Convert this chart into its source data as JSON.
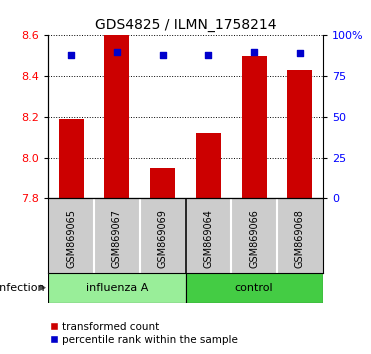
{
  "title": "GDS4825 / ILMN_1758214",
  "samples": [
    "GSM869065",
    "GSM869067",
    "GSM869069",
    "GSM869064",
    "GSM869066",
    "GSM869068"
  ],
  "bar_values": [
    8.19,
    8.6,
    7.95,
    8.12,
    8.5,
    8.43
  ],
  "percentile_values": [
    88,
    90,
    88,
    88,
    90,
    89
  ],
  "bar_baseline": 7.8,
  "ylim_left": [
    7.8,
    8.6
  ],
  "ylim_right": [
    0,
    100
  ],
  "yticks_left": [
    7.8,
    8.0,
    8.2,
    8.4,
    8.6
  ],
  "yticks_right": [
    0,
    25,
    50,
    75,
    100
  ],
  "ytick_labels_right": [
    "0",
    "25",
    "50",
    "75",
    "100%"
  ],
  "bar_color": "#CC0000",
  "square_color": "#0000CC",
  "background_color": "#ffffff",
  "sample_box_color": "#cccccc",
  "influenza_color": "#99ee99",
  "control_color": "#44cc44",
  "infection_label": "infection",
  "group_labels": [
    "influenza A",
    "control"
  ],
  "legend_items": [
    "transformed count",
    "percentile rank within the sample"
  ],
  "title_fontsize": 10,
  "axis_fontsize": 8,
  "label_fontsize": 8
}
